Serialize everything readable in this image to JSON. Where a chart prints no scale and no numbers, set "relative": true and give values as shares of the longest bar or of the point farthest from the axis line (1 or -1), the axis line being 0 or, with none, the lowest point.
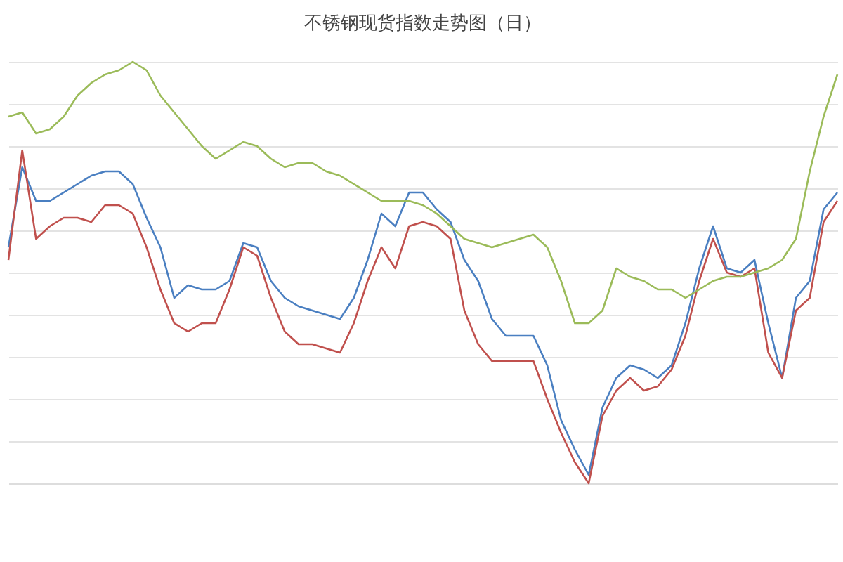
{
  "chart_data": {
    "type": "line",
    "title": "不锈钢现货指数走势图（日）",
    "relative": true,
    "grid": "y",
    "categories": [
      null,
      null,
      null,
      null,
      null,
      null,
      null,
      null,
      null,
      null,
      null,
      null,
      null,
      null,
      null,
      null,
      null,
      null,
      null,
      null,
      null,
      null,
      null,
      null,
      null,
      null,
      null,
      null,
      null,
      null,
      null,
      null,
      null,
      null,
      null,
      null,
      null,
      null,
      null,
      null,
      null,
      null,
      null,
      null,
      null,
      null,
      null,
      null,
      null,
      null,
      null,
      null,
      null,
      null,
      null,
      null,
      null,
      null,
      null,
      null,
      null
    ],
    "series": [
      {
        "color": "#4a7fc1",
        "values": [
          0.56,
          0.75,
          0.67,
          0.67,
          0.69,
          0.71,
          0.73,
          0.74,
          0.74,
          0.71,
          0.63,
          0.56,
          0.44,
          0.47,
          0.46,
          0.46,
          0.48,
          0.57,
          0.56,
          0.48,
          0.44,
          0.42,
          0.41,
          0.4,
          0.39,
          0.44,
          0.53,
          0.64,
          0.61,
          0.69,
          0.69,
          0.65,
          0.62,
          0.53,
          0.48,
          0.39,
          0.35,
          0.35,
          0.35,
          0.28,
          0.15,
          0.08,
          0.02,
          0.18,
          0.25,
          0.28,
          0.27,
          0.25,
          0.28,
          0.38,
          0.51,
          0.61,
          0.51,
          0.5,
          0.53,
          0.38,
          0.25,
          0.44,
          0.48,
          0.65,
          0.69
        ]
      },
      {
        "color": "#c0504d",
        "values": [
          0.53,
          0.79,
          0.58,
          0.61,
          0.63,
          0.63,
          0.62,
          0.66,
          0.66,
          0.64,
          0.56,
          0.46,
          0.38,
          0.36,
          0.38,
          0.38,
          0.46,
          0.56,
          0.54,
          0.44,
          0.36,
          0.33,
          0.33,
          0.32,
          0.31,
          0.38,
          0.48,
          0.56,
          0.51,
          0.61,
          0.62,
          0.61,
          0.58,
          0.41,
          0.33,
          0.29,
          0.29,
          0.29,
          0.29,
          0.2,
          0.12,
          0.05,
          0,
          0.16,
          0.22,
          0.25,
          0.22,
          0.23,
          0.27,
          0.35,
          0.48,
          0.58,
          0.5,
          0.49,
          0.51,
          0.31,
          0.25,
          0.41,
          0.44,
          0.62,
          0.67
        ]
      },
      {
        "color": "#9bbb59",
        "values": [
          0.87,
          0.88,
          0.83,
          0.84,
          0.87,
          0.92,
          0.95,
          0.97,
          0.98,
          1,
          0.98,
          0.92,
          0.88,
          0.84,
          0.8,
          0.77,
          0.79,
          0.81,
          0.8,
          0.77,
          0.75,
          0.76,
          0.76,
          0.74,
          0.73,
          0.71,
          0.69,
          0.67,
          0.67,
          0.67,
          0.66,
          0.64,
          0.61,
          0.58,
          0.57,
          0.56,
          0.57,
          0.58,
          0.59,
          0.56,
          0.48,
          0.38,
          0.38,
          0.41,
          0.51,
          0.49,
          0.48,
          0.46,
          0.46,
          0.44,
          0.46,
          0.48,
          0.49,
          0.49,
          0.5,
          0.51,
          0.53,
          0.58,
          0.74,
          0.87,
          0.97
        ]
      }
    ]
  }
}
